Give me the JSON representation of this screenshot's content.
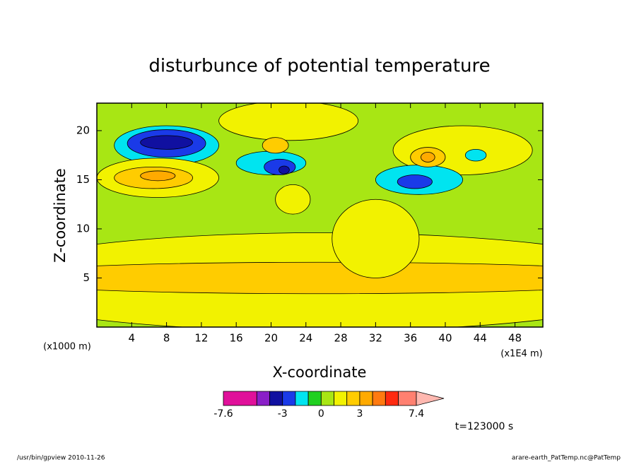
{
  "chart_data": {
    "type": "contour",
    "title": "disturbunce of potential temperature",
    "x_label": "X-coordinate",
    "y_label": "Z-coordinate",
    "x_unit": "(x1E4 m)",
    "y_unit": "(x1000 m)",
    "xlim": [
      0,
      51.2
    ],
    "ylim": [
      0,
      22.8
    ],
    "xticks": [
      4,
      8,
      12,
      16,
      20,
      24,
      28,
      32,
      36,
      40,
      44,
      48
    ],
    "yticks": [
      5,
      10,
      15,
      20
    ],
    "background": 0.5,
    "levels": [
      -7.6,
      -5,
      -4,
      -3,
      -2,
      -1,
      0,
      1,
      2,
      3,
      4,
      5,
      6,
      7.4
    ],
    "colors": [
      "#e0109a",
      "#8a1fc8",
      "#1010a0",
      "#1a3ae8",
      "#00e4f0",
      "#20d020",
      "#a8e614",
      "#f2f200",
      "#ffcc00",
      "#ffaa00",
      "#ff7a10",
      "#ff2a10",
      "#ff8070"
    ],
    "over_color": "#ffb8b0",
    "colorbar_ticks": [
      -7.6,
      -3,
      0,
      3,
      7.4
    ],
    "regions": [
      {
        "cx": 25.6,
        "cz": 4.6,
        "rx": 40,
        "rz": 5,
        "value": 1.5
      },
      {
        "cx": 25.6,
        "cz": 5.0,
        "rx": 40,
        "rz": 1.6,
        "value": 2.5
      },
      {
        "cx": 32,
        "cz": 9,
        "rx": 5,
        "rz": 4,
        "value": 1.5
      },
      {
        "cx": 22,
        "cz": 21,
        "rx": 8,
        "rz": 2,
        "value": 1.5
      },
      {
        "cx": 42,
        "cz": 18,
        "rx": 8,
        "rz": 2.5,
        "value": 1.5
      },
      {
        "cx": 22.5,
        "cz": 13,
        "rx": 2,
        "rz": 1.5,
        "value": 1.5
      },
      {
        "cx": 8,
        "cz": 18.5,
        "rx": 6,
        "rz": 2,
        "value": -1.5
      },
      {
        "cx": 8,
        "cz": 18.7,
        "rx": 4.5,
        "rz": 1.4,
        "value": -2.5
      },
      {
        "cx": 8,
        "cz": 18.8,
        "rx": 3,
        "rz": 0.7,
        "value": -3.5
      },
      {
        "cx": 7,
        "cz": 15.2,
        "rx": 7,
        "rz": 2,
        "value": 1.5
      },
      {
        "cx": 6.5,
        "cz": 15.2,
        "rx": 4.5,
        "rz": 1.1,
        "value": 2.5
      },
      {
        "cx": 7,
        "cz": 15.4,
        "rx": 2,
        "rz": 0.5,
        "value": 3.5
      },
      {
        "cx": 20,
        "cz": 16.7,
        "rx": 4,
        "rz": 1.2,
        "value": -1.5
      },
      {
        "cx": 21,
        "cz": 16.3,
        "rx": 1.8,
        "rz": 0.8,
        "value": -2.5
      },
      {
        "cx": 21.5,
        "cz": 16,
        "rx": 0.6,
        "rz": 0.4,
        "value": -3.5
      },
      {
        "cx": 20.5,
        "cz": 18.5,
        "rx": 1.5,
        "rz": 0.8,
        "value": 2.5
      },
      {
        "cx": 37,
        "cz": 15,
        "rx": 5,
        "rz": 1.5,
        "value": -1.5
      },
      {
        "cx": 36.5,
        "cz": 14.8,
        "rx": 2,
        "rz": 0.7,
        "value": -2.5
      },
      {
        "cx": 38,
        "cz": 17.3,
        "rx": 2,
        "rz": 1,
        "value": 2.5
      },
      {
        "cx": 38,
        "cz": 17.3,
        "rx": 0.8,
        "rz": 0.5,
        "value": 3.5
      },
      {
        "cx": 43.5,
        "cz": 17.5,
        "rx": 1.2,
        "rz": 0.6,
        "value": -1.5
      }
    ],
    "time_label": "t=123000 s",
    "footer_left": "/usr/bin/gpview  2010-11-26",
    "footer_right": "arare-earth_PatTemp.nc@PatTemp"
  }
}
